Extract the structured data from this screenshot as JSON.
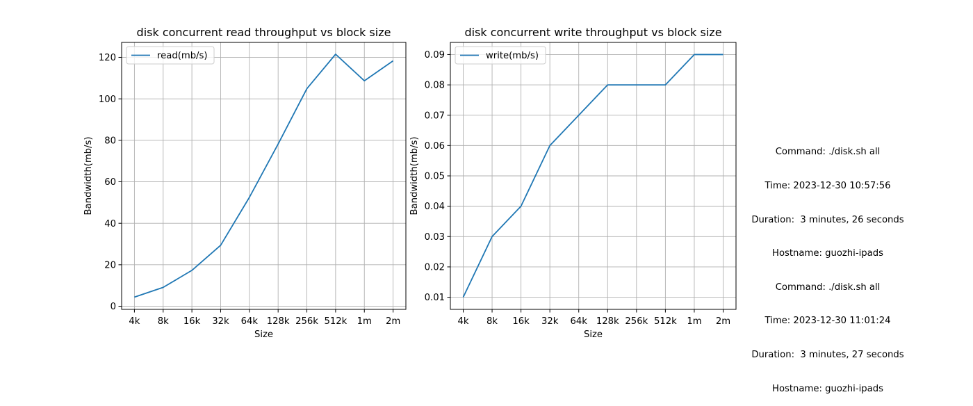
{
  "chart_data": [
    {
      "type": "line",
      "title": "disk concurrent read throughput vs block size",
      "xlabel": "Size",
      "ylabel": "Bandwidth(mb/s)",
      "categories": [
        "4k",
        "8k",
        "16k",
        "32k",
        "64k",
        "128k",
        "256k",
        "512k",
        "1m",
        "2m"
      ],
      "series": [
        {
          "name": "read(mb/s)",
          "values": [
            4.4,
            9.1,
            17.3,
            29.4,
            52.5,
            78.2,
            104.9,
            121.5,
            108.7,
            118.3
          ]
        }
      ],
      "ylim": [
        -1.5,
        127.2
      ],
      "yticks": [
        0,
        20,
        40,
        60,
        80,
        100,
        120
      ],
      "ytick_labels": [
        "0",
        "20",
        "40",
        "60",
        "80",
        "100",
        "120"
      ],
      "grid": true,
      "legend_position": "top-left",
      "line_color": "#1f77b4"
    },
    {
      "type": "line",
      "title": "disk concurrent write throughput vs block size",
      "xlabel": "Size",
      "ylabel": "Bandwidth(mb/s)",
      "categories": [
        "4k",
        "8k",
        "16k",
        "32k",
        "64k",
        "128k",
        "256k",
        "512k",
        "1m",
        "2m"
      ],
      "series": [
        {
          "name": "write(mb/s)",
          "values": [
            0.01,
            0.03,
            0.04,
            0.06,
            0.07,
            0.08,
            0.08,
            0.08,
            0.09,
            0.09
          ]
        }
      ],
      "ylim": [
        0.006,
        0.094
      ],
      "yticks": [
        0.01,
        0.02,
        0.03,
        0.04,
        0.05,
        0.06,
        0.07,
        0.08,
        0.09
      ],
      "ytick_labels": [
        "0.01",
        "0.02",
        "0.03",
        "0.04",
        "0.05",
        "0.06",
        "0.07",
        "0.08",
        "0.09"
      ],
      "grid": true,
      "legend_position": "top-left",
      "line_color": "#1f77b4"
    }
  ],
  "info": {
    "lines": [
      "Command: ./disk.sh all",
      "Time: 2023-12-30 10:57:56",
      "Duration:  3 minutes, 26 seconds",
      "Hostname: guozhi-ipads",
      "Command: ./disk.sh all",
      "Time: 2023-12-30 11:01:24",
      "Duration:  3 minutes, 27 seconds",
      "Hostname: guozhi-ipads"
    ]
  }
}
